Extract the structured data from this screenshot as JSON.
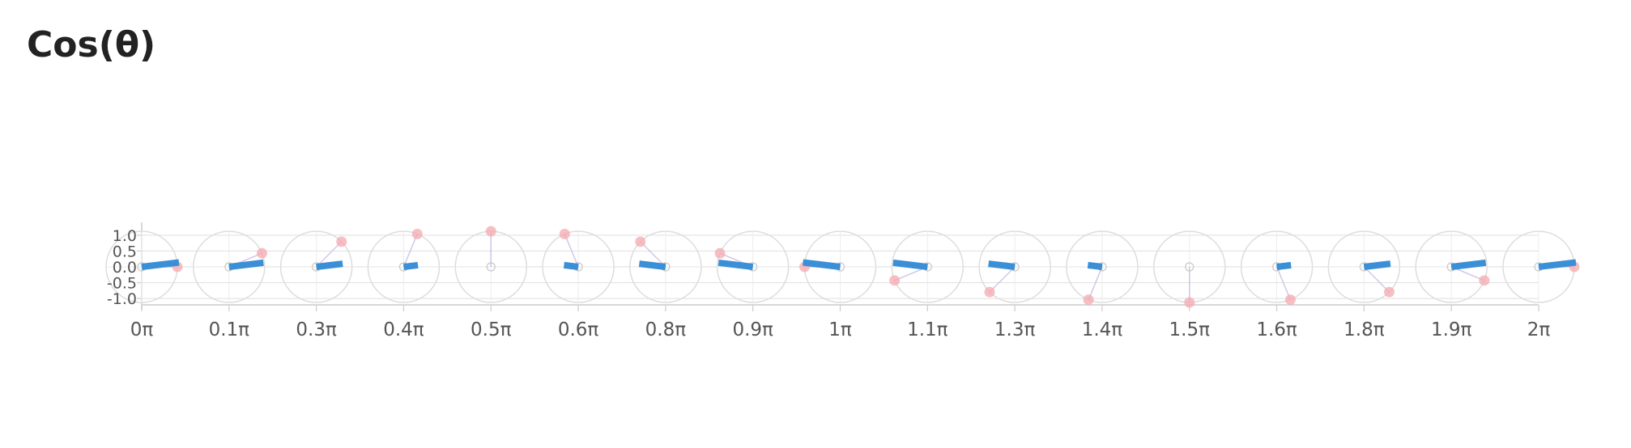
{
  "title": "Cos(θ)",
  "chart_data": {
    "type": "bar",
    "title": "Cos(θ)",
    "categories": [
      "0π",
      "0.1π",
      "0.3π",
      "0.4π",
      "0.5π",
      "0.6π",
      "0.8π",
      "0.9π",
      "1π",
      "1.1π",
      "1.3π",
      "1.4π",
      "1.5π",
      "1.6π",
      "1.8π",
      "1.9π",
      "2π"
    ],
    "angles_pi": [
      0,
      0.125,
      0.25,
      0.375,
      0.5,
      0.625,
      0.75,
      0.875,
      1,
      1.125,
      1.25,
      1.375,
      1.5,
      1.625,
      1.75,
      1.875,
      2
    ],
    "values": [
      1.0,
      0.924,
      0.707,
      0.383,
      0.0,
      -0.383,
      -0.707,
      -0.924,
      -1.0,
      -0.924,
      -0.707,
      -0.383,
      0.0,
      0.383,
      0.707,
      0.924,
      1.0
    ],
    "y_ticks": [
      "1.0",
      "0.5",
      "0.0",
      "-0.5",
      "-1.0"
    ],
    "ylim": [
      -1.2,
      1.2
    ],
    "grid": true,
    "colors": {
      "bar": "#3a8fd6",
      "point": "#f4a9b0",
      "circle": "#dddddd",
      "grid": "#e3e3e3",
      "axis": "#cccccc",
      "radius_line": "#c9b9e3"
    }
  }
}
